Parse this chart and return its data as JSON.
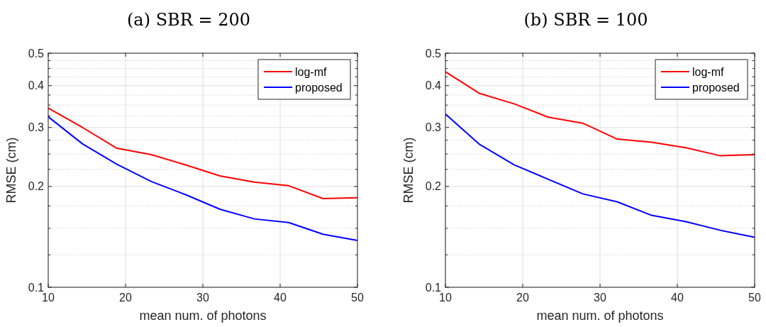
{
  "chart_data": [
    {
      "type": "line",
      "title": "(a) SBR = 200",
      "xlabel": "mean num. of photons",
      "ylabel": "RMSE (cm)",
      "log": "y",
      "grid": true,
      "legend": "top right",
      "line_style": "solid",
      "marker": "none",
      "x": [
        10,
        14.44,
        18.89,
        23.33,
        27.78,
        32.22,
        36.67,
        41.11,
        45.56,
        50
      ],
      "xlim": [
        10,
        50
      ],
      "xticks": [
        10,
        20,
        30,
        40,
        50
      ],
      "ylim": [
        0.1,
        0.5
      ],
      "yticks": [
        0.1,
        {
          "value": 0.125,
          "label": null
        },
        {
          "value": 0.15,
          "label": null
        },
        {
          "value": 0.175,
          "label": null
        },
        0.2,
        {
          "value": 0.225,
          "label": null
        },
        {
          "value": 0.25,
          "label": null
        },
        {
          "value": 0.275,
          "label": null
        },
        0.3,
        {
          "value": 0.325,
          "label": null
        },
        {
          "value": 0.35,
          "label": null
        },
        {
          "value": 0.375,
          "label": null
        },
        0.4,
        {
          "value": 0.425,
          "label": null
        },
        {
          "value": 0.45,
          "label": null
        },
        {
          "value": 0.475,
          "label": null
        },
        0.5
      ],
      "series": [
        {
          "name": "log-mf",
          "color": "#ff0000",
          "values": [
            0.343,
            0.3,
            0.26,
            0.249,
            0.232,
            0.215,
            0.206,
            0.201,
            0.184,
            0.185
          ]
        },
        {
          "name": "proposed",
          "color": "#0000ff",
          "values": [
            0.323,
            0.268,
            0.233,
            0.207,
            0.189,
            0.171,
            0.16,
            0.156,
            0.144,
            0.138
          ]
        }
      ]
    },
    {
      "type": "line",
      "title": "(b) SBR = 100",
      "xlabel": "mean num. of photons",
      "ylabel": "RMSE (cm)",
      "log": "y",
      "grid": true,
      "legend": "top right",
      "line_style": "solid",
      "marker": "none",
      "x": [
        10,
        14.44,
        18.89,
        23.33,
        27.78,
        32.22,
        36.67,
        41.11,
        45.56,
        50
      ],
      "xlim": [
        10,
        50
      ],
      "xticks": [
        10,
        20,
        30,
        40,
        50
      ],
      "ylim": [
        0.1,
        0.5
      ],
      "yticks": [
        0.1,
        {
          "value": 0.125,
          "label": null
        },
        {
          "value": 0.15,
          "label": null
        },
        {
          "value": 0.175,
          "label": null
        },
        0.2,
        {
          "value": 0.225,
          "label": null
        },
        {
          "value": 0.25,
          "label": null
        },
        {
          "value": 0.275,
          "label": null
        },
        0.3,
        {
          "value": 0.325,
          "label": null
        },
        {
          "value": 0.35,
          "label": null
        },
        {
          "value": 0.375,
          "label": null
        },
        0.4,
        {
          "value": 0.425,
          "label": null
        },
        {
          "value": 0.45,
          "label": null
        },
        {
          "value": 0.475,
          "label": null
        },
        0.5
      ],
      "series": [
        {
          "name": "log-mf",
          "color": "#ff0000",
          "values": [
            0.44,
            0.379,
            0.353,
            0.322,
            0.309,
            0.277,
            0.271,
            0.261,
            0.247,
            0.249
          ]
        },
        {
          "name": "proposed",
          "color": "#0000ff",
          "values": [
            0.329,
            0.267,
            0.232,
            0.21,
            0.19,
            0.18,
            0.164,
            0.157,
            0.148,
            0.141
          ]
        }
      ]
    }
  ]
}
